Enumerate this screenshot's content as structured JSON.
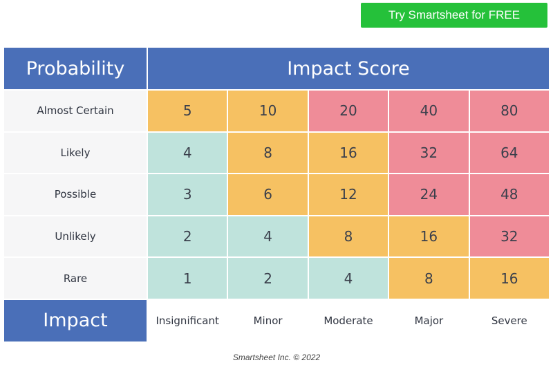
{
  "cta": {
    "label": "Try Smartsheet for FREE"
  },
  "matrix": {
    "header_left": "Probability",
    "header_main": "Impact Score",
    "footer_left": "Impact",
    "rows": [
      {
        "label": "Almost Certain",
        "scores": [
          "5",
          "10",
          "20",
          "40",
          "80"
        ],
        "levels": [
          "med",
          "med",
          "high",
          "high",
          "high"
        ]
      },
      {
        "label": "Likely",
        "scores": [
          "4",
          "8",
          "16",
          "32",
          "64"
        ],
        "levels": [
          "low",
          "med",
          "med",
          "high",
          "high"
        ]
      },
      {
        "label": "Possible",
        "scores": [
          "3",
          "6",
          "12",
          "24",
          "48"
        ],
        "levels": [
          "low",
          "med",
          "med",
          "high",
          "high"
        ]
      },
      {
        "label": "Unlikely",
        "scores": [
          "2",
          "4",
          "8",
          "16",
          "32"
        ],
        "levels": [
          "low",
          "low",
          "med",
          "med",
          "high"
        ]
      },
      {
        "label": "Rare",
        "scores": [
          "1",
          "2",
          "4",
          "8",
          "16"
        ],
        "levels": [
          "low",
          "low",
          "low",
          "med",
          "med"
        ]
      }
    ],
    "impact_levels": [
      "Insignificant",
      "Minor",
      "Moderate",
      "Major",
      "Severe"
    ]
  },
  "colors": {
    "header": "#4a6fb8",
    "low": "#bfe3dc",
    "medium": "#f6c162",
    "high": "#ef8c98",
    "cta": "#25c13a"
  },
  "footer": {
    "credit": "Smartsheet Inc. © 2022"
  }
}
